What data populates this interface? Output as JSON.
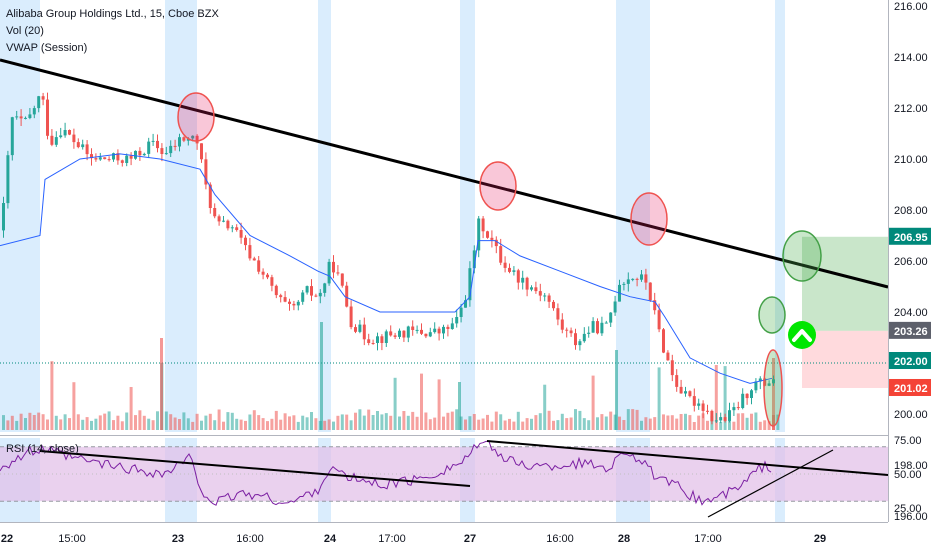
{
  "header": {
    "symbol_line": "Alibaba Group Holdings Ltd., 15, Cboe BZX",
    "indicator_1": "Vol (20)",
    "indicator_2": "VWAP (Session)"
  },
  "rsi_panel": {
    "label": "RSI (14, close)",
    "ticks": [
      "75.00",
      "50.00",
      "25.00"
    ]
  },
  "colors": {
    "up": "#26a69a",
    "down": "#ef5350",
    "vwap": "#2962ff",
    "trendline": "#000000",
    "rsi": "#7b1fa2",
    "rsi_band": "#e1bee7",
    "session_shade": "#bbdefb",
    "target_zone": "#a5d6a7",
    "stop_zone": "#ffcdd2",
    "badge_target": "#00897b",
    "badge_mid": "#5d606b",
    "badge_stop": "#f44336",
    "arrow_badge": "#00e600"
  },
  "price_axis": {
    "ticks": [
      "216.00",
      "214.00",
      "212.00",
      "210.00",
      "208.00",
      "206.00",
      "204.00",
      "202.00",
      "200.00",
      "198.00",
      "196.00"
    ],
    "badges": [
      {
        "label": "206.95",
        "color_key": "badge_target"
      },
      {
        "label": "203.26",
        "color_key": "badge_mid"
      },
      {
        "label": "202.00",
        "color_key": "badge_target"
      },
      {
        "label": "201.02",
        "color_key": "badge_stop"
      }
    ]
  },
  "time_axis": {
    "labels": [
      "22",
      "15:00",
      "23",
      "16:00",
      "24",
      "17:00",
      "27",
      "16:00",
      "28",
      "17:00",
      "29"
    ]
  },
  "annotations": {
    "arrow": "up-arrow-icon"
  }
}
